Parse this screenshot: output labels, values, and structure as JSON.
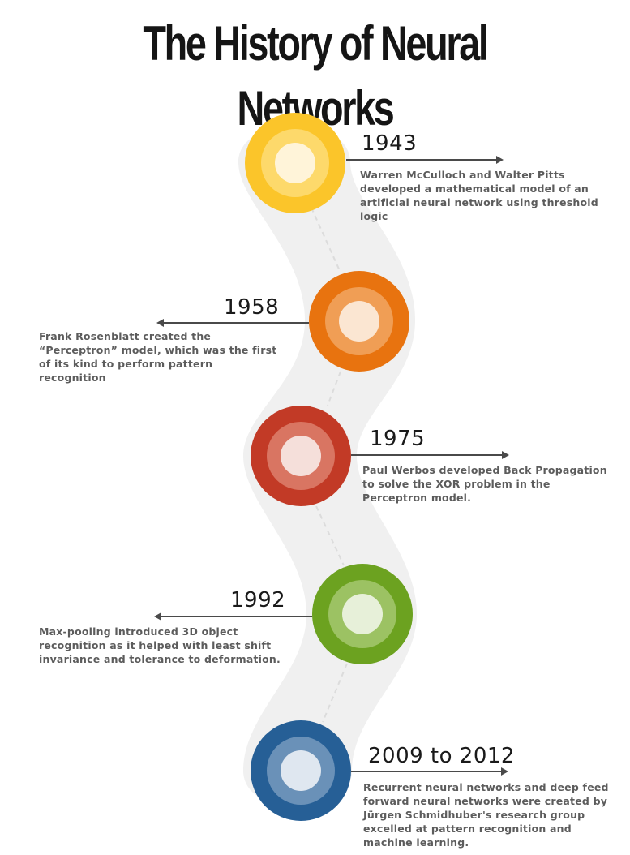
{
  "title": "The History of Neural Networks",
  "colors": {
    "ribbon": "#f0f0f0",
    "connector": "#dcdcdc",
    "arrow": "#4a4a4a"
  },
  "milestones": [
    {
      "year": "1943",
      "description": "Warren McCulloch and Walter Pitts developed a mathematical model of an artificial neural network using threshold logic",
      "color_outer": "#fbc52a",
      "color_mid": "#fdd96b",
      "color_inner": "#fff4d9"
    },
    {
      "year": "1958",
      "description": "Frank Rosenblatt created the “Perceptron” model, which was the first of its kind to perform pattern recognition",
      "color_outer": "#e8730f",
      "color_mid": "#f09e55",
      "color_inner": "#fbe6d2"
    },
    {
      "year": "1975",
      "description": "Paul Werbos developed Back Propagation to solve the XOR problem in the Perceptron model.",
      "color_outer": "#c23a26",
      "color_mid": "#d97562",
      "color_inner": "#f5dfda"
    },
    {
      "year": "1992",
      "description": "Max-pooling introduced 3D object recognition as it helped with least shift invariance and tolerance to deformation.",
      "color_outer": "#6ca220",
      "color_mid": "#9cc263",
      "color_inner": "#e7f0d9"
    },
    {
      "year": "2009 to 2012",
      "description": "Recurrent neural networks and deep feed forward neural networks were created by Jürgen Schmidhuber's research group excelled at pattern recognition and machine learning.",
      "color_outer": "#265f96",
      "color_mid": "#6a91b8",
      "color_inner": "#dfe7f0"
    }
  ]
}
